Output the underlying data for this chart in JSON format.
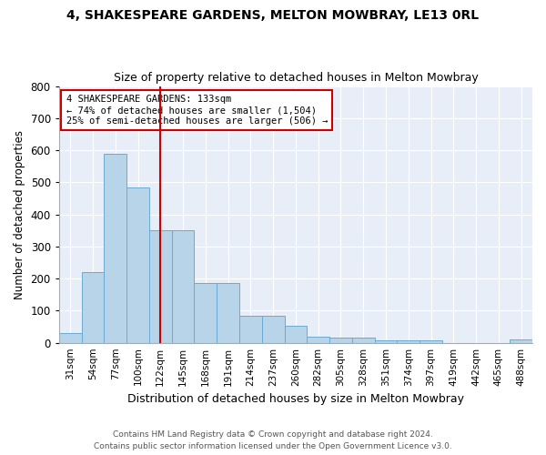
{
  "title1": "4, SHAKESPEARE GARDENS, MELTON MOWBRAY, LE13 0RL",
  "title2": "Size of property relative to detached houses in Melton Mowbray",
  "xlabel": "Distribution of detached houses by size in Melton Mowbray",
  "ylabel": "Number of detached properties",
  "bar_color": "#b8d4e8",
  "bar_edge_color": "#6aaad4",
  "bg_color": "#e8eef8",
  "grid_color": "#ffffff",
  "categories": [
    "31sqm",
    "54sqm",
    "77sqm",
    "100sqm",
    "122sqm",
    "145sqm",
    "168sqm",
    "191sqm",
    "214sqm",
    "237sqm",
    "260sqm",
    "282sqm",
    "305sqm",
    "328sqm",
    "351sqm",
    "374sqm",
    "397sqm",
    "419sqm",
    "442sqm",
    "465sqm",
    "488sqm"
  ],
  "values": [
    30,
    220,
    590,
    485,
    350,
    350,
    185,
    185,
    85,
    85,
    52,
    18,
    15,
    15,
    8,
    8,
    8,
    0,
    0,
    0,
    10
  ],
  "ylim": [
    0,
    800
  ],
  "yticks": [
    0,
    100,
    200,
    300,
    400,
    500,
    600,
    700,
    800
  ],
  "vline_x": 4.0,
  "vline_color": "#cc0000",
  "annotation_text": "4 SHAKESPEARE GARDENS: 133sqm\n← 74% of detached houses are smaller (1,504)\n25% of semi-detached houses are larger (506) →",
  "annotation_box_color": "white",
  "annotation_box_edge": "#cc0000",
  "footer1": "Contains HM Land Registry data © Crown copyright and database right 2024.",
  "footer2": "Contains public sector information licensed under the Open Government Licence v3.0."
}
